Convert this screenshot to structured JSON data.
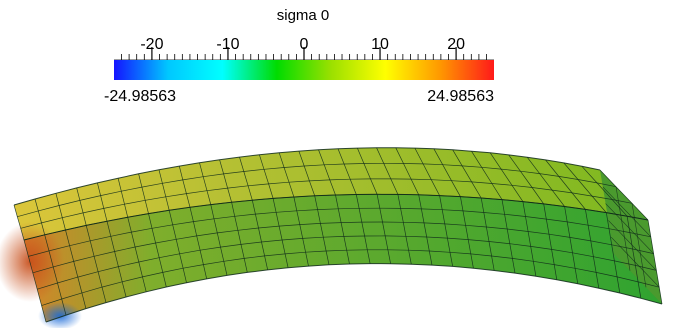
{
  "scalar_bar": {
    "title": "sigma 0",
    "min_label": "-24.98563",
    "max_label": "24.98563",
    "range": [
      -24.98563,
      24.98563
    ],
    "major_ticks": [
      {
        "value": -20,
        "label": "-20"
      },
      {
        "value": -10,
        "label": "-10"
      },
      {
        "value": 0,
        "label": "0"
      },
      {
        "value": 10,
        "label": "10"
      },
      {
        "value": 20,
        "label": "20"
      }
    ],
    "minor_tick_step": 1,
    "colormap": [
      "#1414ff",
      "#00c8ff",
      "#00ffff",
      "#00dc00",
      "#9be000",
      "#ffff00",
      "#ff9900",
      "#ff1a1a"
    ]
  },
  "mesh": {
    "length_divisions": 30,
    "height_divisions": 5,
    "depth_divisions": 3,
    "top_face_color": "#7cb81f",
    "top_face_hot_color": "#dcc63a",
    "side_face_color": "#2fa330",
    "side_face_hot_color": "#d8832a",
    "end_face_color": "#4a9a2e",
    "edge_color": "#0f2a1a"
  }
}
